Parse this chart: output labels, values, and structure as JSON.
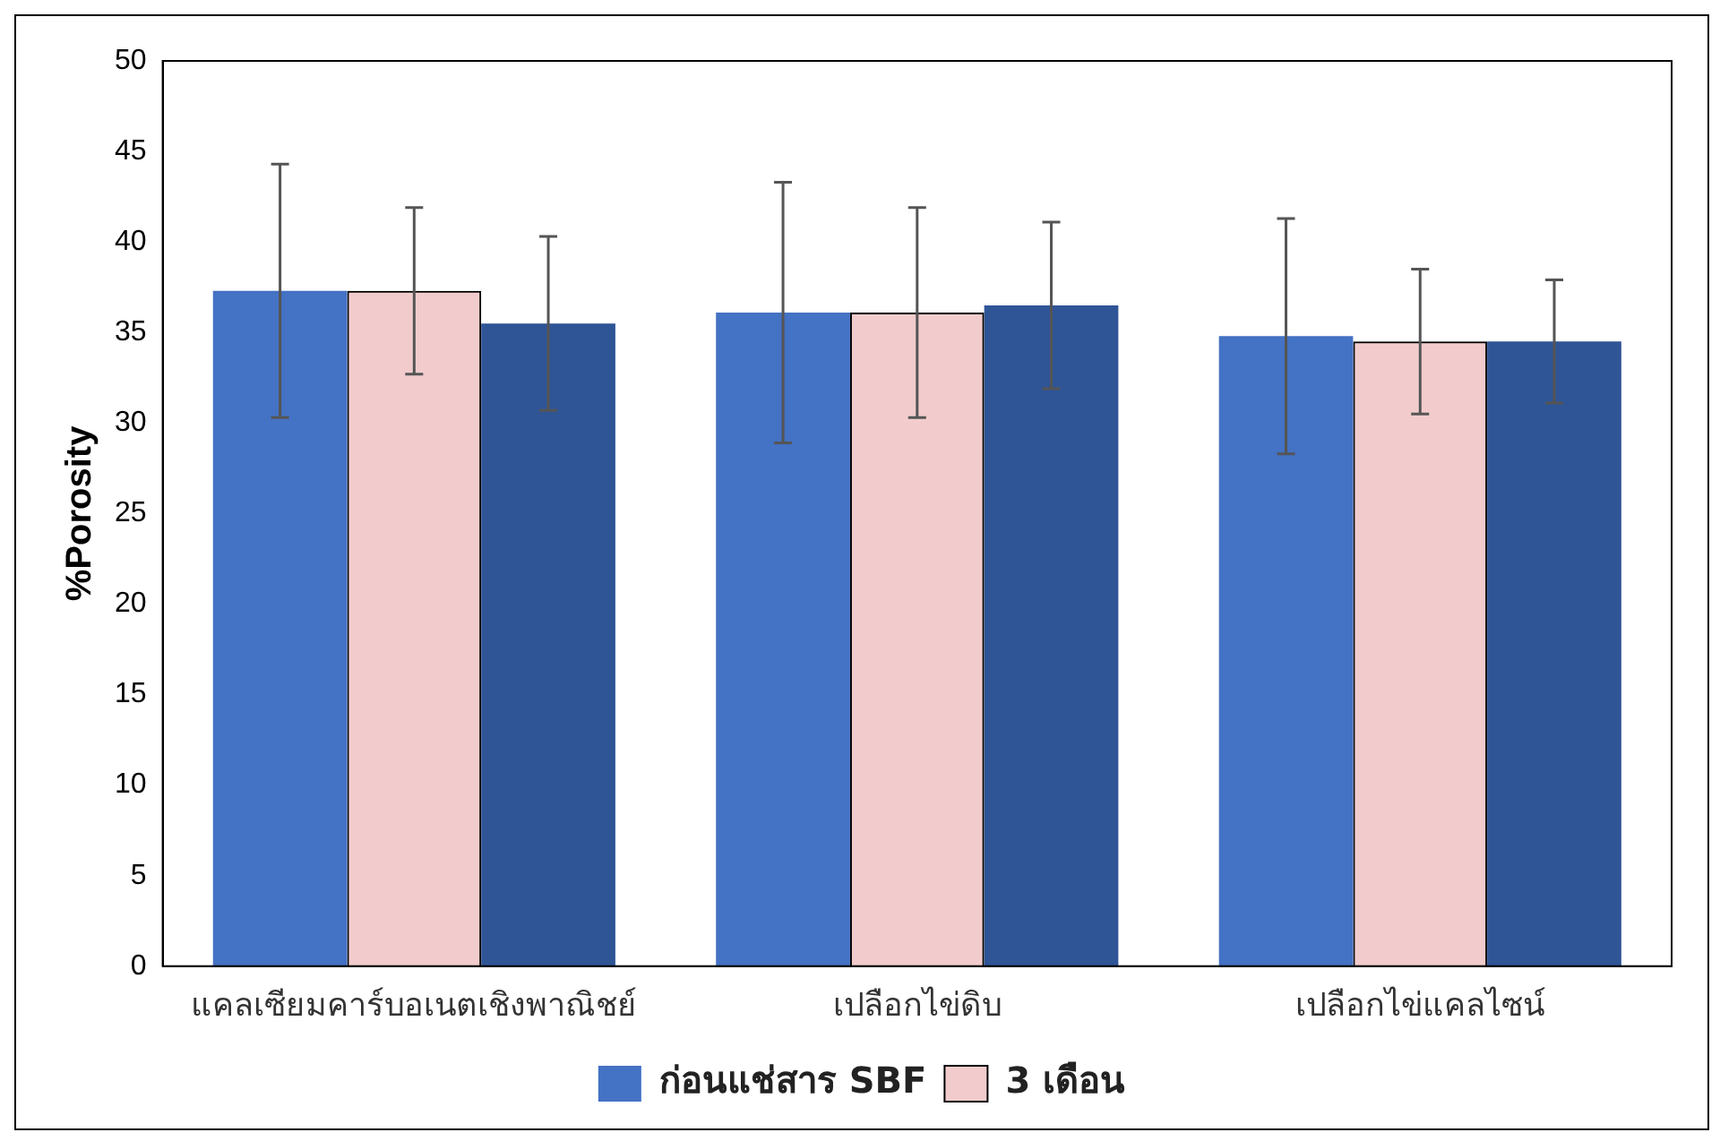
{
  "chart_data": {
    "type": "bar",
    "ylabel": "%Porosity",
    "categories": [
      "แคลเซียมคาร์บอเนตเชิงพาณิชย์",
      "เปลือกไข่ดิบ",
      "เปลือกไข่แคลไซน์"
    ],
    "ylim": [
      0,
      50
    ],
    "yticks": [
      0,
      5,
      10,
      15,
      20,
      25,
      30,
      35,
      40,
      45,
      50
    ],
    "grid": false,
    "legend": "bottom",
    "series": [
      {
        "name": "ก่อนแช่สาร SBF",
        "color": "#4472c4",
        "values": [
          37.3,
          36.1,
          34.8
        ],
        "errors": [
          7.0,
          7.2,
          6.5
        ]
      },
      {
        "name": "3 เดือน",
        "color": "#c00000",
        "values": [
          37.3,
          36.1,
          34.5
        ],
        "errors": [
          4.6,
          5.8,
          4.0
        ]
      },
      {
        "color": "#2f5597",
        "values": [
          35.5,
          36.5,
          34.5
        ],
        "errors": [
          4.8,
          4.6,
          3.4
        ]
      }
    ]
  }
}
